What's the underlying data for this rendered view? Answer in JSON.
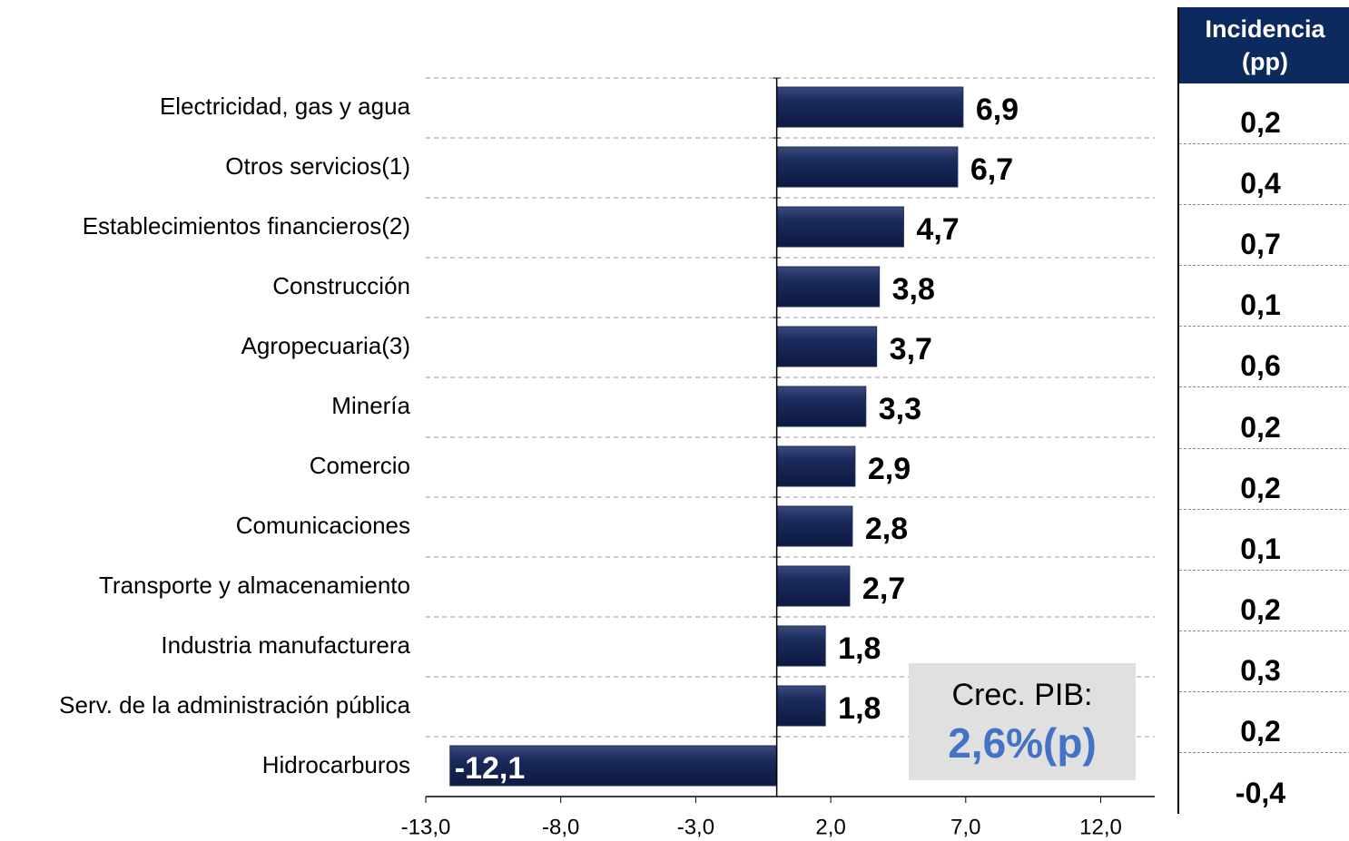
{
  "chart_data": {
    "type": "bar",
    "orientation": "horizontal",
    "categories": [
      "Electricidad, gas y agua",
      "Otros servicios(1)",
      "Establecimientos financieros(2)",
      "Construcción",
      "Agropecuaria(3)",
      "Minería",
      "Comercio",
      "Comunicaciones",
      "Transporte y almacenamiento",
      "Industria manufacturera",
      "Serv. de la administración pública",
      "Hidrocarburos"
    ],
    "values": [
      6.9,
      6.7,
      4.7,
      3.8,
      3.7,
      3.3,
      2.9,
      2.8,
      2.7,
      1.8,
      1.8,
      -12.1
    ],
    "value_labels": [
      "6,9",
      "6,7",
      "4,7",
      "3,8",
      "3,7",
      "3,3",
      "2,9",
      "2,8",
      "2,7",
      "1,8",
      "1,8",
      "-12,1"
    ],
    "color": "#1b2a5c",
    "xlim": [
      -13,
      14
    ],
    "xticks": [
      {
        "value": -13,
        "label": "-13,0"
      },
      {
        "value": -8,
        "label": "-8,0"
      },
      {
        "value": -3,
        "label": "-3,0"
      },
      {
        "value": 2,
        "label": "2,0"
      },
      {
        "value": 7,
        "label": "7,0"
      },
      {
        "value": 12,
        "label": "12,0"
      }
    ],
    "grid": true,
    "annotation": {
      "label": "Crec. PIB:",
      "value": "2,6%(p)"
    },
    "incidence": {
      "header": "Incidencia (pp)",
      "rows": [
        "0,2",
        "0,4",
        "0,7",
        "0,1",
        "0,6",
        "0,2",
        "0,2",
        "0,1",
        "0,2",
        "0,3",
        "0,2",
        "-0,4"
      ]
    }
  }
}
